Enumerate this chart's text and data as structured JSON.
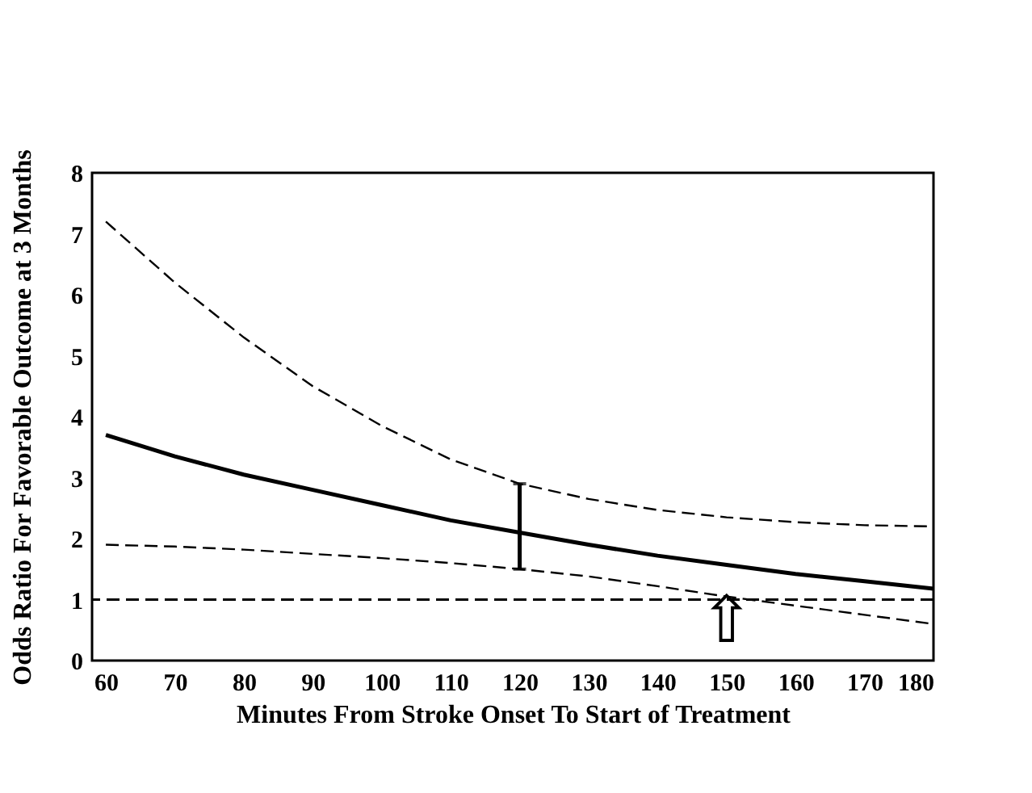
{
  "chart_data": {
    "type": "line",
    "xlabel": "Minutes From Stroke Onset To Start of Treatment",
    "ylabel": "Odds Ratio For Favorable Outcome at 3 Months",
    "x": [
      60,
      70,
      80,
      90,
      100,
      110,
      120,
      130,
      140,
      150,
      160,
      170,
      180
    ],
    "series": [
      {
        "color": "#000000",
        "line_style": "solid",
        "values": [
          3.7,
          3.35,
          3.05,
          2.8,
          2.55,
          2.3,
          2.1,
          1.9,
          1.72,
          1.57,
          1.42,
          1.3,
          1.18
        ],
        "errors": [
          null,
          null,
          null,
          null,
          null,
          null,
          [
            1.5,
            2.9
          ],
          null,
          null,
          null,
          null,
          null,
          null
        ]
      },
      {
        "color": "#000000",
        "line_style": "dashed",
        "values": [
          7.2,
          6.2,
          5.3,
          4.5,
          3.85,
          3.3,
          2.9,
          2.65,
          2.47,
          2.35,
          2.27,
          2.22,
          2.2
        ]
      },
      {
        "color": "#000000",
        "line_style": "dashed",
        "values": [
          1.9,
          1.87,
          1.82,
          1.75,
          1.68,
          1.6,
          1.5,
          1.38,
          1.22,
          1.05,
          0.9,
          0.75,
          0.6
        ]
      }
    ],
    "ref_lines": [
      {
        "axis": "y",
        "value": 1,
        "color": "#000000",
        "line_style": "dashed"
      }
    ],
    "annotations": [
      {
        "text": "⇧",
        "x": 150,
        "y": 1
      }
    ],
    "xlim": [
      58,
      180
    ],
    "xticks": [
      60,
      70,
      80,
      90,
      100,
      110,
      120,
      130,
      140,
      150,
      160,
      170,
      180
    ],
    "ylim": [
      0,
      8
    ],
    "yticks": [
      0,
      1,
      2,
      3,
      4,
      5,
      6,
      7,
      8
    ],
    "grid": false,
    "marker": "none"
  }
}
